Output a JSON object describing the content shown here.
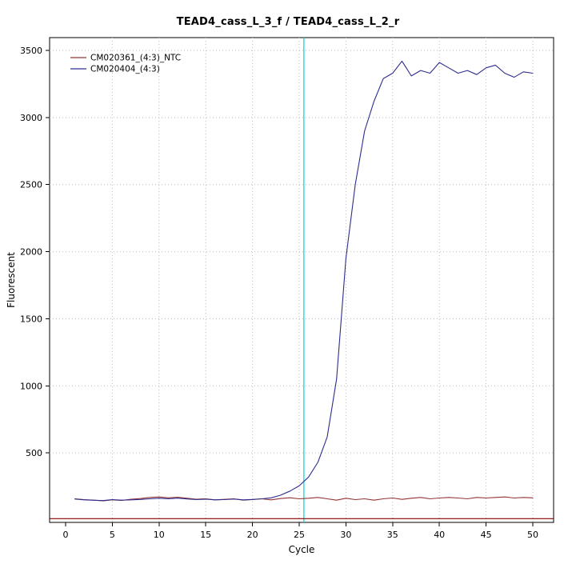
{
  "page": {
    "background": "#ffffff"
  },
  "chart_data": {
    "type": "line",
    "title": "TEAD4_cass_L_3_f / TEAD4_cass_L_2_r",
    "xlabel": "Cycle",
    "ylabel": "Fluorescent",
    "xlim": [
      0,
      50
    ],
    "ylim": [
      0,
      3500
    ],
    "xticks": [
      0,
      5,
      10,
      15,
      20,
      25,
      30,
      35,
      40,
      45,
      50
    ],
    "yticks": [
      500,
      1000,
      1500,
      2000,
      2500,
      3000,
      3500
    ],
    "grid": {
      "style": "dotted",
      "color": "#bdbdbd",
      "x_at": [
        5,
        10,
        15,
        20,
        25,
        30,
        35,
        40,
        45,
        50
      ],
      "y_at": [
        500,
        1000,
        1500,
        2000,
        2500,
        3000,
        3500
      ]
    },
    "legend": {
      "position": "top-left"
    },
    "threshold_line": {
      "orientation": "vertical",
      "x": 25.5,
      "color": "#00dde6"
    },
    "baseline_line": {
      "orientation": "horizontal",
      "y": 10,
      "color": "#8b0000"
    },
    "x": [
      1,
      2,
      3,
      4,
      5,
      6,
      7,
      8,
      9,
      10,
      11,
      12,
      13,
      14,
      15,
      16,
      17,
      18,
      19,
      20,
      21,
      22,
      23,
      24,
      25,
      26,
      27,
      28,
      29,
      30,
      31,
      32,
      33,
      34,
      35,
      36,
      37,
      38,
      39,
      40,
      41,
      42,
      43,
      44,
      45,
      46,
      47,
      48,
      49,
      50
    ],
    "series": [
      {
        "name": "CM020361_(4:3)_NTC",
        "color": "#943434",
        "values": [
          158,
          152,
          148,
          143,
          150,
          146,
          155,
          160,
          168,
          172,
          165,
          170,
          162,
          155,
          158,
          150,
          154,
          158,
          148,
          152,
          158,
          150,
          160,
          166,
          158,
          162,
          168,
          158,
          148,
          162,
          152,
          158,
          148,
          158,
          164,
          154,
          162,
          168,
          158,
          164,
          168,
          164,
          158,
          168,
          164,
          168,
          172,
          164,
          168,
          165
        ]
      },
      {
        "name": "CM020404_(4:3)",
        "color": "#2d2d8f",
        "values": [
          156,
          150,
          147,
          145,
          152,
          148,
          150,
          153,
          158,
          162,
          158,
          163,
          157,
          152,
          155,
          150,
          152,
          156,
          150,
          153,
          158,
          165,
          185,
          215,
          255,
          320,
          430,
          620,
          1050,
          1950,
          2500,
          2900,
          3120,
          3290,
          3330,
          3420,
          3310,
          3350,
          3330,
          3410,
          3370,
          3330,
          3350,
          3320,
          3370,
          3390,
          3330,
          3300,
          3340,
          3330
        ]
      }
    ]
  }
}
